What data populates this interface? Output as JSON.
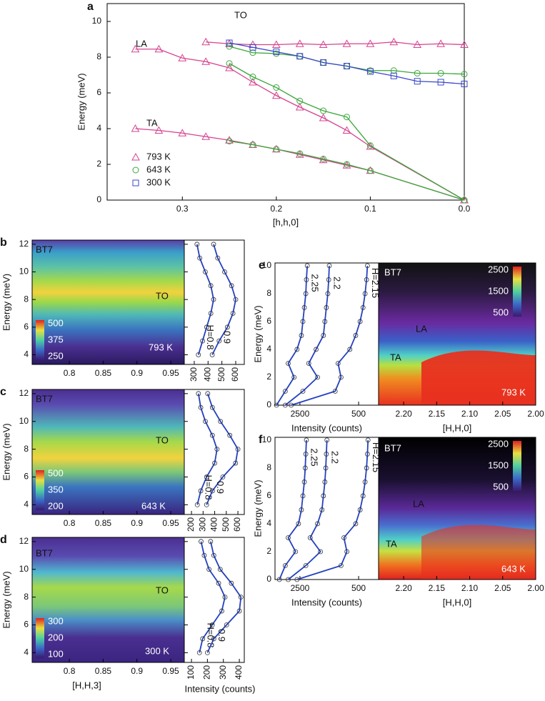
{
  "chart_data": [
    {
      "panel": "a",
      "type": "line",
      "ylabel": "Energy (meV)",
      "xlabel": "[h,h,0]",
      "xlim": [
        0.38,
        0
      ],
      "ylim": [
        0,
        11
      ],
      "xticks": [
        0.3,
        0.2,
        0.1,
        {
          "value": 0,
          "label": "0.0"
        }
      ],
      "yticks": [
        0,
        2,
        4,
        6,
        8,
        10
      ],
      "annotations": [
        "LA",
        "TA",
        "TO"
      ],
      "series": [
        {
          "name": "793 K",
          "color": "#d6428f",
          "marker": "triangle",
          "branches": [
            {
              "x": [
                0.35,
                0.325,
                0.3,
                0.275,
                0.25,
                0.225,
                0.2,
                0.175,
                0.15,
                0.125,
                0.1,
                0
              ],
              "values": [
                4.0,
                3.9,
                3.75,
                3.55,
                3.35,
                3.1,
                2.85,
                2.55,
                2.25,
                1.95,
                1.65,
                0
              ]
            },
            {
              "x": [
                0.35,
                0.325,
                0.3,
                0.275,
                0.25,
                0.225,
                0.2,
                0.175,
                0.15,
                0.125,
                0.1,
                0
              ],
              "values": [
                8.45,
                8.45,
                7.95,
                7.75,
                7.4,
                6.6,
                5.85,
                5.2,
                4.6,
                3.9,
                3.0,
                0
              ]
            },
            {
              "x": [
                0.275,
                0.25,
                0.225,
                0.2,
                0.175,
                0.15,
                0.125,
                0.1,
                0.075,
                0.05,
                0.025,
                0
              ],
              "values": [
                8.85,
                8.75,
                8.7,
                8.7,
                8.75,
                8.7,
                8.75,
                8.75,
                8.85,
                8.7,
                8.75,
                8.7
              ]
            }
          ]
        },
        {
          "name": "643 K",
          "color": "#3aa63a",
          "marker": "circle",
          "branches": [
            {
              "x": [
                0.25,
                0.225,
                0.2,
                0.175,
                0.15,
                0.125,
                0.1,
                0
              ],
              "values": [
                3.3,
                3.1,
                2.85,
                2.6,
                2.3,
                2.0,
                1.65,
                0
              ]
            },
            {
              "x": [
                0.25,
                0.225,
                0.2,
                0.175,
                0.15,
                0.125,
                0.1,
                0
              ],
              "values": [
                7.65,
                6.9,
                6.3,
                5.55,
                5.0,
                4.65,
                3.05,
                0
              ]
            },
            {
              "x": [
                0.25,
                0.225,
                0.2,
                0.175,
                0.15,
                0.125,
                0.1,
                0.075,
                0.05,
                0.025,
                0
              ],
              "values": [
                8.6,
                8.25,
                8.2,
                8.05,
                7.7,
                7.5,
                7.25,
                7.25,
                7.1,
                7.1,
                7.05
              ]
            }
          ]
        },
        {
          "name": "300 K",
          "color": "#3a48c8",
          "marker": "square",
          "branches": [
            {
              "x": [
                0.25,
                0.225,
                0.2,
                0.175,
                0.15,
                0.125,
                0.1,
                0.075,
                0.05,
                0.025,
                0
              ],
              "values": [
                8.8,
                8.55,
                8.3,
                8.05,
                7.7,
                7.5,
                7.2,
                6.95,
                6.65,
                6.6,
                6.5
              ]
            }
          ]
        }
      ]
    },
    {
      "panel": "b",
      "type": "heatmap",
      "ylabel": "Energy (meV)",
      "xlim": [
        0.745,
        0.97
      ],
      "xticks": [
        0.8,
        0.85,
        0.9,
        0.95
      ],
      "ylim": [
        3.3,
        12.3
      ],
      "yticks": [
        4,
        6,
        8,
        10,
        12
      ],
      "colorbar_ticks": [
        250,
        375,
        500
      ],
      "annotations": [
        "BT7",
        "TO",
        "793 K"
      ],
      "spectra": {
        "xlim": [
          228,
          662
        ],
        "xticks": [
          300,
          400,
          500,
          600
        ],
        "color": "#2340c0",
        "energy": [
          4,
          5,
          6,
          7,
          8,
          9,
          10,
          11,
          12
        ],
        "curves": [
          {
            "name": "H=0.8",
            "values": [
              330,
              360,
              390,
              420,
              440,
              420,
              380,
              340,
              320
            ]
          },
          {
            "name": "0.9",
            "values": [
              430,
              480,
              540,
              580,
              600,
              570,
              520,
              470,
              440
            ]
          }
        ]
      }
    },
    {
      "panel": "c",
      "type": "heatmap",
      "ylabel": "Energy (meV)",
      "xlim": [
        0.745,
        0.97
      ],
      "xticks": [
        0.8,
        0.85,
        0.9,
        0.95
      ],
      "ylim": [
        3.3,
        12.3
      ],
      "yticks": [
        4,
        6,
        8,
        10,
        12
      ],
      "colorbar_ticks": [
        200,
        350,
        500
      ],
      "annotations": [
        "BT7",
        "TO",
        "643 K"
      ],
      "spectra": {
        "xlim": [
          138,
          655
        ],
        "xticks": [
          200,
          300,
          400,
          500,
          600
        ],
        "color": "#2340c0",
        "energy": [
          4,
          5,
          6,
          7,
          8,
          9,
          10,
          11,
          12
        ],
        "curves": [
          {
            "name": "H=0.8",
            "values": [
              250,
              280,
              330,
              400,
              420,
              380,
              320,
              280,
              260
            ]
          },
          {
            "name": "0.9",
            "values": [
              330,
              380,
              470,
              580,
              600,
              530,
              450,
              380,
              340
            ]
          }
        ]
      }
    },
    {
      "panel": "d",
      "type": "heatmap",
      "ylabel": "Energy (meV)",
      "xlabel": "[H,H,3]",
      "xlim": [
        0.745,
        0.97
      ],
      "xticks": [
        0.8,
        0.85,
        0.9,
        0.95
      ],
      "ylim": [
        3.3,
        12.3
      ],
      "yticks": [
        4,
        6,
        8,
        10,
        12
      ],
      "colorbar_ticks": [
        100,
        200,
        300
      ],
      "annotations": [
        "BT7",
        "TO",
        "300 K"
      ],
      "spectra": {
        "xlabel": "Intensity (counts)",
        "xlim": [
          55,
          431
        ],
        "xticks": [
          100,
          200,
          300,
          400
        ],
        "color": "#2340c0",
        "energy": [
          4,
          5,
          6,
          7,
          8,
          9,
          10,
          11,
          12
        ],
        "curves": [
          {
            "name": "H=0.8",
            "values": [
              150,
              170,
              230,
              290,
              310,
              270,
              210,
              180,
              160
            ]
          },
          {
            "name": "0.9",
            "values": [
              200,
              240,
              320,
              400,
              410,
              350,
              280,
              240,
              220
            ]
          }
        ]
      }
    },
    {
      "panel": "e",
      "type": "heatmap",
      "ylabel": "Energy (meV)",
      "xlabel": "[H,H,0]",
      "xlim": [
        2.238,
        2.0
      ],
      "xticks": [
        {
          "value": 2.2,
          "label": "2.20"
        },
        2.15,
        {
          "value": 2.1,
          "label": "2.10"
        },
        2.05,
        {
          "value": 2,
          "label": "2.00"
        }
      ],
      "ylim": [
        0,
        10.2
      ],
      "yticks": [
        0,
        2,
        4,
        6,
        8,
        10
      ],
      "colorbar_ticks": [
        500,
        1500,
        2500
      ],
      "annotations": [
        "BT7",
        "LA",
        "TA",
        "793 K"
      ],
      "spectra": {
        "xlabel": "Intensity (counts)",
        "xlim": [
          3350,
          -180
        ],
        "xticks": [
          2500,
          500
        ],
        "color": "#2340c0",
        "energy": [
          0,
          1,
          2,
          3,
          4,
          5,
          6,
          7,
          8,
          9,
          10
        ],
        "curves": [
          {
            "name": "2.25",
            "values": [
              3300,
              3000,
              2700,
              2900,
              2600,
              2450,
              2400,
              2350,
              2300,
              2280,
              2250
            ]
          },
          {
            "name": "2.2",
            "values": [
              3000,
              2400,
              1900,
              2200,
              1950,
              1700,
              1650,
              1600,
              1550,
              1520,
              1500
            ]
          },
          {
            "name": "H=2.15",
            "values": [
              2800,
              1300,
              1100,
              1200,
              800,
              600,
              450,
              350,
              280,
              230,
              200
            ]
          }
        ]
      }
    },
    {
      "panel": "f",
      "type": "heatmap",
      "ylabel": "Energy (meV)",
      "xlabel": "[H,H,0]",
      "xlim": [
        2.238,
        2.0
      ],
      "xticks": [
        {
          "value": 2.2,
          "label": "2.20"
        },
        2.15,
        {
          "value": 2.1,
          "label": "2.10"
        },
        2.05,
        {
          "value": 2,
          "label": "2.00"
        }
      ],
      "ylim": [
        0,
        10.2
      ],
      "yticks": [
        0,
        2,
        4,
        6,
        8,
        10
      ],
      "colorbar_ticks": [
        500,
        1500,
        2500
      ],
      "annotations": [
        "BT7",
        "LA",
        "TA",
        "643 K"
      ],
      "spectra": {
        "xlabel": "Intensity (counts)",
        "xlim": [
          3350,
          -180
        ],
        "xticks": [
          2500,
          500
        ],
        "color": "#2340c0",
        "energy": [
          0,
          1,
          2,
          3,
          4,
          5,
          6,
          7,
          8,
          9,
          10
        ],
        "curves": [
          {
            "name": "2.25",
            "values": [
              3200,
              3000,
              2650,
              2900,
              2550,
              2450,
              2400,
              2350,
              2320,
              2300,
              2280
            ]
          },
          {
            "name": "2.2",
            "values": [
              2900,
              2300,
              1800,
              2150,
              1900,
              1750,
              1700,
              1650,
              1620,
              1600,
              1580
            ]
          },
          {
            "name": "H=2.15",
            "values": [
              2600,
              1100,
              900,
              1000,
              600,
              450,
              350,
              280,
              230,
              200,
              180
            ]
          }
        ]
      }
    }
  ]
}
